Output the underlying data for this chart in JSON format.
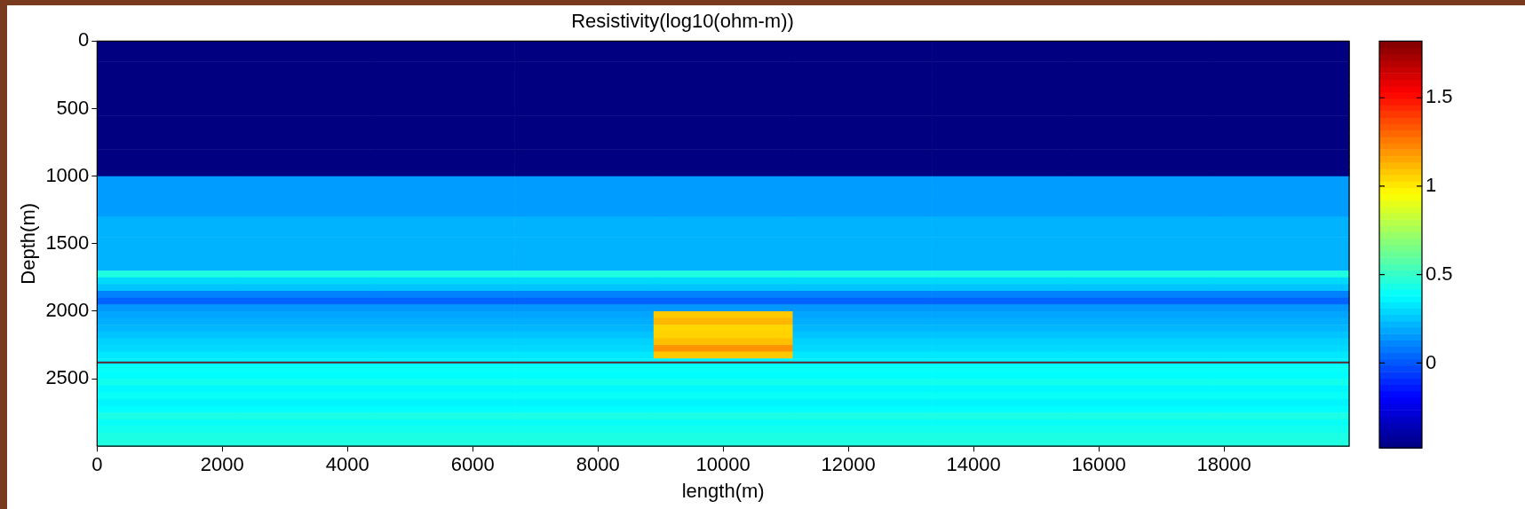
{
  "chart_data": {
    "type": "heatmap",
    "title": "Resistivity(log10(ohm-m))",
    "xlabel": "length(m)",
    "ylabel": "Depth(m)",
    "xlim": [
      0,
      20000
    ],
    "xticks": [
      0,
      2000,
      4000,
      6000,
      8000,
      10000,
      12000,
      14000,
      16000,
      18000
    ],
    "ylim": [
      3000,
      0
    ],
    "yticks": [
      0,
      500,
      1000,
      1500,
      2000,
      2500
    ],
    "clim": [
      -0.48,
      1.82
    ],
    "cticks": [
      0,
      0.5,
      1,
      1.5
    ],
    "grid": false,
    "ref_lines": [
      {
        "axis": "y",
        "value": 2380,
        "color": "#5a2a2a"
      }
    ],
    "cells": [
      [
        -0.48,
        -0.48,
        -0.48,
        -0.48,
        -0.48,
        -0.48,
        -0.48,
        -0.48,
        -0.48
      ],
      [
        -0.48,
        -0.48,
        -0.48,
        -0.48,
        -0.48,
        -0.48,
        -0.48,
        -0.48,
        -0.48
      ],
      [
        -0.48,
        -0.48,
        -0.48,
        -0.48,
        -0.48,
        -0.48,
        -0.48,
        -0.48,
        -0.48
      ],
      [
        -0.48,
        -0.48,
        -0.48,
        -0.48,
        -0.48,
        -0.48,
        -0.48,
        -0.48,
        -0.48
      ],
      [
        -0.48,
        -0.48,
        -0.48,
        -0.48,
        -0.48,
        -0.48,
        -0.48,
        -0.48,
        -0.48
      ],
      [
        -0.48,
        -0.48,
        -0.48,
        -0.48,
        -0.48,
        -0.48,
        -0.48,
        -0.48,
        -0.48
      ],
      [
        -0.48,
        -0.48,
        -0.48,
        -0.48,
        -0.48,
        -0.48,
        -0.48,
        -0.48,
        -0.48
      ],
      [
        -0.48,
        -0.48,
        -0.48,
        -0.48,
        -0.48,
        -0.48,
        -0.48,
        -0.48,
        -0.48
      ],
      [
        -0.48,
        -0.48,
        -0.48,
        -0.48,
        -0.48,
        -0.48,
        -0.48,
        -0.48,
        -0.48
      ],
      [
        -0.48,
        -0.48,
        -0.48,
        -0.48,
        -0.48,
        -0.48,
        -0.48,
        -0.48,
        -0.48
      ],
      [
        -0.48,
        -0.48,
        -0.48,
        -0.48,
        -0.48,
        -0.48,
        -0.48,
        -0.48,
        -0.48
      ],
      [
        -0.48,
        -0.48,
        -0.48,
        -0.48,
        -0.48,
        -0.48,
        -0.48,
        -0.48,
        -0.48
      ],
      [
        -0.48,
        -0.48,
        -0.48,
        -0.48,
        -0.48,
        -0.48,
        -0.48,
        -0.48,
        -0.48
      ],
      [
        -0.48,
        -0.48,
        -0.48,
        -0.48,
        -0.48,
        -0.48,
        -0.48,
        -0.48,
        -0.48
      ],
      [
        -0.48,
        -0.48,
        -0.48,
        -0.48,
        -0.48,
        -0.48,
        -0.48,
        -0.48,
        -0.48
      ],
      [
        -0.48,
        -0.48,
        -0.48,
        -0.48,
        -0.48,
        -0.48,
        -0.48,
        -0.48,
        -0.48
      ],
      [
        -0.48,
        -0.48,
        -0.48,
        -0.48,
        -0.48,
        -0.48,
        -0.48,
        -0.48,
        -0.48
      ],
      [
        -0.48,
        -0.48,
        -0.48,
        -0.48,
        -0.48,
        -0.48,
        -0.48,
        -0.48,
        -0.48
      ],
      [
        -0.48,
        -0.48,
        -0.48,
        -0.48,
        -0.48,
        -0.48,
        -0.48,
        -0.48,
        -0.48
      ],
      [
        -0.48,
        -0.48,
        -0.48,
        -0.48,
        -0.48,
        -0.48,
        -0.48,
        -0.48,
        -0.48
      ],
      [
        0.16,
        0.16,
        0.16,
        0.16,
        0.16,
        0.16,
        0.16,
        0.16,
        0.16
      ],
      [
        0.16,
        0.16,
        0.16,
        0.16,
        0.16,
        0.16,
        0.16,
        0.16,
        0.16
      ],
      [
        0.16,
        0.16,
        0.16,
        0.16,
        0.16,
        0.16,
        0.16,
        0.16,
        0.16
      ],
      [
        0.16,
        0.16,
        0.16,
        0.16,
        0.16,
        0.16,
        0.16,
        0.16,
        0.16
      ],
      [
        0.16,
        0.16,
        0.16,
        0.16,
        0.16,
        0.16,
        0.16,
        0.16,
        0.16
      ],
      [
        0.16,
        0.16,
        0.16,
        0.16,
        0.16,
        0.16,
        0.16,
        0.16,
        0.16
      ],
      [
        0.21,
        0.21,
        0.21,
        0.21,
        0.21,
        0.21,
        0.21,
        0.21,
        0.21
      ],
      [
        0.21,
        0.21,
        0.21,
        0.21,
        0.21,
        0.21,
        0.21,
        0.21,
        0.21
      ],
      [
        0.21,
        0.21,
        0.21,
        0.21,
        0.21,
        0.21,
        0.21,
        0.21,
        0.21
      ],
      [
        0.21,
        0.21,
        0.21,
        0.21,
        0.21,
        0.21,
        0.21,
        0.21,
        0.21
      ],
      [
        0.21,
        0.21,
        0.21,
        0.21,
        0.21,
        0.21,
        0.21,
        0.21,
        0.21
      ],
      [
        0.21,
        0.21,
        0.21,
        0.21,
        0.21,
        0.21,
        0.21,
        0.21,
        0.21
      ],
      [
        0.21,
        0.21,
        0.21,
        0.21,
        0.21,
        0.21,
        0.21,
        0.21,
        0.21
      ],
      [
        0.21,
        0.21,
        0.21,
        0.21,
        0.21,
        0.21,
        0.21,
        0.21,
        0.21
      ],
      [
        0.45,
        0.45,
        0.45,
        0.45,
        0.45,
        0.45,
        0.45,
        0.45,
        0.45
      ],
      [
        0.3,
        0.3,
        0.3,
        0.3,
        0.3,
        0.3,
        0.3,
        0.3,
        0.3
      ],
      [
        0.25,
        0.25,
        0.25,
        0.25,
        0.25,
        0.25,
        0.25,
        0.25,
        0.25
      ],
      [
        0.1,
        0.1,
        0.1,
        0.1,
        0.1,
        0.1,
        0.1,
        0.1,
        0.1
      ],
      [
        0.03,
        0.03,
        0.03,
        0.03,
        0.03,
        0.03,
        0.03,
        0.03,
        0.03
      ],
      [
        0.15,
        0.15,
        0.15,
        0.15,
        0.15,
        0.15,
        0.15,
        0.15,
        0.15
      ],
      [
        0.18,
        0.18,
        0.18,
        0.18,
        1.08,
        0.18,
        0.18,
        0.18,
        0.18
      ],
      [
        0.2,
        0.2,
        0.2,
        0.2,
        1.12,
        0.2,
        0.2,
        0.2,
        0.2
      ],
      [
        0.22,
        0.22,
        0.22,
        0.22,
        1.05,
        0.22,
        0.22,
        0.22,
        0.22
      ],
      [
        0.25,
        0.25,
        0.25,
        0.25,
        1.06,
        0.25,
        0.25,
        0.25,
        0.25
      ],
      [
        0.28,
        0.28,
        0.28,
        0.28,
        1.1,
        0.28,
        0.28,
        0.28,
        0.28
      ],
      [
        0.3,
        0.3,
        0.3,
        0.3,
        1.2,
        0.3,
        0.3,
        0.3,
        0.3
      ],
      [
        0.33,
        0.33,
        0.33,
        0.33,
        1.08,
        0.33,
        0.33,
        0.33,
        0.33
      ],
      [
        0.35,
        0.35,
        0.35,
        0.35,
        0.35,
        0.35,
        0.35,
        0.35,
        0.35
      ],
      [
        0.4,
        0.4,
        0.4,
        0.4,
        0.4,
        0.4,
        0.4,
        0.4,
        0.4
      ],
      [
        0.38,
        0.38,
        0.38,
        0.38,
        0.38,
        0.38,
        0.38,
        0.38,
        0.38
      ],
      [
        0.42,
        0.42,
        0.42,
        0.42,
        0.42,
        0.42,
        0.42,
        0.42,
        0.42
      ],
      [
        0.37,
        0.37,
        0.37,
        0.37,
        0.37,
        0.37,
        0.37,
        0.37,
        0.37
      ],
      [
        0.4,
        0.4,
        0.4,
        0.4,
        0.4,
        0.4,
        0.4,
        0.4,
        0.4
      ],
      [
        0.36,
        0.36,
        0.36,
        0.36,
        0.36,
        0.36,
        0.36,
        0.36,
        0.36
      ],
      [
        0.38,
        0.38,
        0.38,
        0.38,
        0.38,
        0.38,
        0.38,
        0.38,
        0.38
      ],
      [
        0.44,
        0.44,
        0.44,
        0.44,
        0.44,
        0.44,
        0.44,
        0.44,
        0.44
      ],
      [
        0.4,
        0.4,
        0.4,
        0.4,
        0.4,
        0.4,
        0.4,
        0.4,
        0.4
      ],
      [
        0.42,
        0.42,
        0.42,
        0.42,
        0.42,
        0.42,
        0.42,
        0.42,
        0.42
      ],
      [
        0.44,
        0.44,
        0.44,
        0.44,
        0.44,
        0.44,
        0.44,
        0.44,
        0.44
      ],
      [
        0.45,
        0.45,
        0.45,
        0.45,
        0.45,
        0.45,
        0.45,
        0.45,
        0.45
      ]
    ]
  }
}
